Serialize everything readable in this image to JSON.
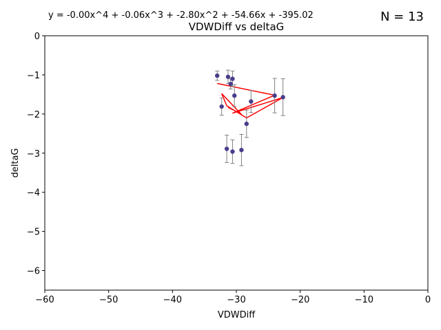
{
  "chart_data": {
    "type": "scatter",
    "title": "VDWDiff vs deltaG",
    "equation": "y = -0.00x^4 + -0.06x^3 + -2.80x^2 + -54.66x + -395.02",
    "n_label": "N = 13",
    "xlabel": "VDWDiff",
    "ylabel": "deltaG",
    "xlim": [
      -60,
      0
    ],
    "ylim": [
      -6.5,
      0
    ],
    "xticks": [
      -60,
      -50,
      -40,
      -30,
      -20,
      -10,
      0
    ],
    "yticks": [
      0,
      -1,
      -2,
      -3,
      -4,
      -5,
      -6
    ],
    "tick_labels": {
      "x": [
        "−60",
        "−50",
        "−40",
        "−30",
        "−20",
        "−10",
        "0"
      ],
      "y": [
        "0",
        "−1",
        "−2",
        "−3",
        "−4",
        "−5",
        "−6"
      ]
    },
    "grid": false,
    "colors": {
      "points": "#483d8b",
      "errorbars": "#808080",
      "fit": "#ff0000"
    },
    "points": [
      {
        "x": -33.0,
        "y": -1.02,
        "err": 0.12
      },
      {
        "x": -31.3,
        "y": -1.05,
        "err": 0.17
      },
      {
        "x": -30.9,
        "y": -1.23,
        "err": 0.13
      },
      {
        "x": -30.6,
        "y": -1.1,
        "err": 0.2
      },
      {
        "x": -30.3,
        "y": -1.53,
        "err": 0.28
      },
      {
        "x": -32.3,
        "y": -1.81,
        "err": 0.22
      },
      {
        "x": -27.7,
        "y": -1.68,
        "err": 0.28
      },
      {
        "x": -24.0,
        "y": -1.53,
        "err": 0.44
      },
      {
        "x": -22.7,
        "y": -1.57,
        "err": 0.47
      },
      {
        "x": -28.4,
        "y": -2.25,
        "err": 0.35
      },
      {
        "x": -31.5,
        "y": -2.89,
        "err": 0.35
      },
      {
        "x": -30.6,
        "y": -2.96,
        "err": 0.3
      },
      {
        "x": -29.2,
        "y": -2.92,
        "err": 0.4
      }
    ],
    "fit_line": {
      "x": [
        -33.0,
        -24.0,
        -30.6,
        -22.7,
        -28.4,
        -31.5,
        -32.3,
        -29.2,
        -30.3,
        -31.3
      ],
      "y": [
        -1.22,
        -1.52,
        -1.98,
        -1.58,
        -2.1,
        -1.79,
        -1.48,
        -2.01,
        -1.91,
        -1.83
      ]
    }
  }
}
